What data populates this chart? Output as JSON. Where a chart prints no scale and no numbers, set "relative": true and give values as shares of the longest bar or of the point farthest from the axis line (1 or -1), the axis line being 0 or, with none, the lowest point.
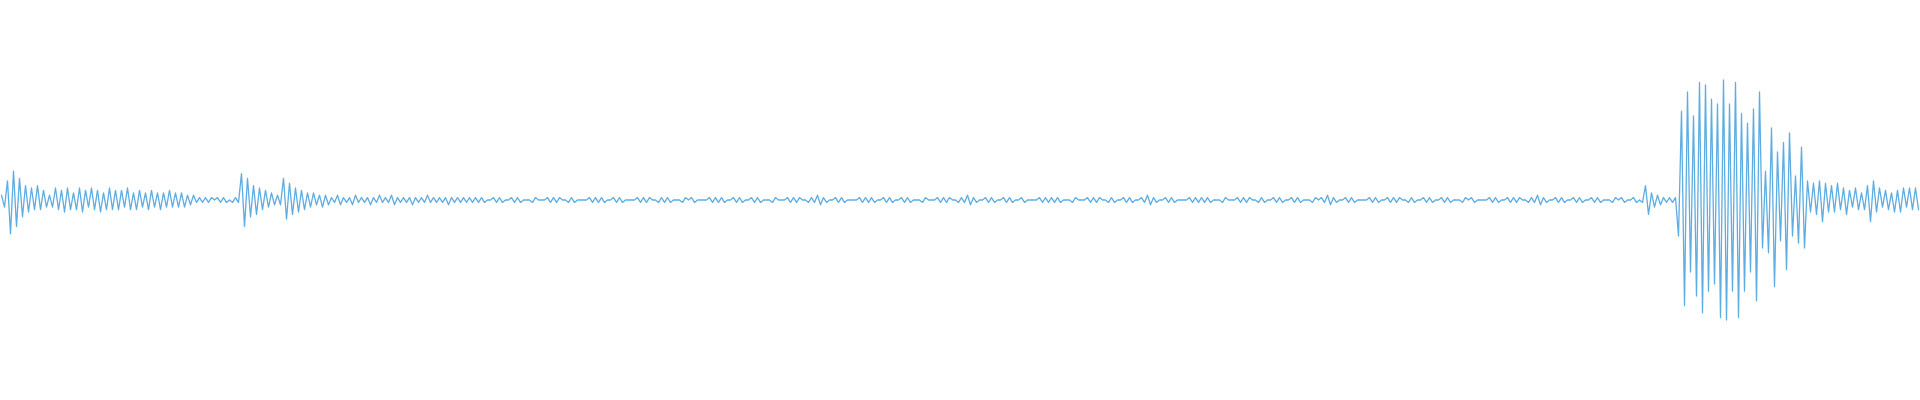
{
  "chart_data": {
    "type": "line",
    "relative": true,
    "color": "#5dade2",
    "categories": [
      null,
      null,
      null,
      null,
      null,
      null,
      null,
      null,
      null,
      null,
      null,
      null,
      null,
      null,
      null,
      null,
      null,
      null,
      null,
      null,
      null,
      null,
      null,
      null,
      null,
      null,
      null,
      null,
      null,
      null,
      null,
      null,
      null,
      null,
      null,
      null,
      null,
      null,
      null,
      null,
      null,
      null,
      null,
      null,
      null,
      null,
      null,
      null,
      null,
      null,
      null,
      null,
      null,
      null,
      null,
      null,
      null,
      null,
      null,
      null,
      null,
      null,
      null,
      null,
      null,
      null,
      null,
      null,
      null,
      null,
      null,
      null,
      null,
      null,
      null,
      null,
      null,
      null,
      null,
      null,
      null,
      null,
      null,
      null,
      null,
      null,
      null,
      null,
      null,
      null,
      null,
      null,
      null,
      null,
      null,
      null,
      null,
      null,
      null,
      null,
      null,
      null,
      null,
      null,
      null,
      null,
      null,
      null,
      null,
      null,
      null,
      null,
      null,
      null,
      null,
      null,
      null,
      null,
      null,
      null,
      null,
      null,
      null,
      null,
      null,
      null,
      null,
      null,
      null,
      null,
      null,
      null,
      null,
      null,
      null,
      null,
      null,
      null,
      null,
      null,
      null,
      null,
      null,
      null,
      null,
      null,
      null,
      null,
      null,
      null,
      null,
      null,
      null,
      null,
      null,
      null,
      null,
      null,
      null,
      null,
      null,
      null,
      null,
      null,
      null,
      null,
      null,
      null,
      null,
      null,
      null,
      null,
      null,
      null,
      null,
      null,
      null,
      null,
      null,
      null,
      null,
      null,
      null,
      null,
      null,
      null,
      null,
      null,
      null,
      null,
      null,
      null,
      null,
      null,
      null,
      null,
      null,
      null,
      null,
      null,
      null,
      null,
      null,
      null,
      null,
      null,
      null,
      null,
      null,
      null,
      null,
      null,
      null,
      null,
      null,
      null,
      null,
      null,
      null,
      null,
      null,
      null,
      null,
      null,
      null,
      null,
      null,
      null,
      null,
      null,
      null,
      null,
      null,
      null,
      null,
      null,
      null,
      null,
      null,
      null,
      null,
      null,
      null,
      null,
      null,
      null,
      null,
      null,
      null,
      null,
      null,
      null,
      null,
      null,
      null,
      null,
      null,
      null,
      null,
      null,
      null,
      null,
      null,
      null,
      null,
      null,
      null,
      null,
      null,
      null,
      null,
      null,
      null,
      null,
      null,
      null,
      null,
      null,
      null,
      null,
      null,
      null,
      null,
      null,
      null,
      null,
      null,
      null,
      null,
      null,
      null,
      null,
      null,
      null,
      null,
      null,
      null,
      null,
      null,
      null,
      null,
      null,
      null,
      null,
      null,
      null,
      null,
      null,
      null,
      null,
      null,
      null,
      null,
      null,
      null,
      null,
      null,
      null,
      null,
      null,
      null,
      null,
      null,
      null,
      null,
      null,
      null,
      null,
      null,
      null,
      null,
      null,
      null,
      null,
      null,
      null,
      null,
      null,
      null,
      null,
      null,
      null,
      null,
      null,
      null,
      null,
      null,
      null,
      null,
      null,
      null,
      null,
      null,
      null,
      null,
      null,
      null,
      null,
      null,
      null,
      null,
      null,
      null,
      null,
      null,
      null,
      null,
      null,
      null,
      null,
      null,
      null,
      null,
      null,
      null,
      null,
      null,
      null,
      null,
      null,
      null,
      null,
      null,
      null,
      null,
      null,
      null,
      null,
      null,
      null,
      null,
      null,
      null,
      null,
      null,
      null,
      null,
      null,
      null,
      null,
      null,
      null,
      null,
      null,
      null,
      null,
      null,
      null,
      null,
      null,
      null,
      null,
      null,
      null,
      null,
      null,
      null,
      null,
      null,
      null,
      null,
      null,
      null,
      null,
      null,
      null,
      null,
      null,
      null,
      null,
      null,
      null,
      null,
      null,
      null,
      null,
      null,
      null,
      null,
      null,
      null,
      null,
      null,
      null,
      null,
      null,
      null,
      null,
      null,
      null,
      null,
      null,
      null,
      null,
      null,
      null,
      null,
      null,
      null,
      null,
      null,
      null,
      null,
      null,
      null,
      null,
      null,
      null,
      null,
      null,
      null,
      null,
      null,
      null,
      null,
      null,
      null,
      null,
      null,
      null,
      null,
      null,
      null,
      null,
      null,
      null,
      null,
      null,
      null,
      null,
      null,
      null,
      null,
      null,
      null,
      null,
      null,
      null,
      null,
      null,
      null,
      null,
      null,
      null,
      null,
      null,
      null,
      null,
      null,
      null,
      null,
      null,
      null,
      null,
      null,
      null,
      null,
      null,
      null,
      null,
      null,
      null,
      null,
      null,
      null,
      null,
      null,
      null,
      null,
      null,
      null,
      null,
      null,
      null,
      null,
      null,
      null,
      null,
      null,
      null,
      null,
      null,
      null,
      null,
      null,
      null,
      null,
      null,
      null,
      null,
      null,
      null,
      null,
      null,
      null,
      null,
      null,
      null,
      null,
      null,
      null,
      null,
      null,
      null,
      null,
      null,
      null,
      null,
      null,
      null,
      null,
      null,
      null,
      null,
      null,
      null,
      null,
      null,
      null,
      null,
      null,
      null,
      null,
      null,
      null,
      null,
      null,
      null,
      null,
      null,
      null,
      null,
      null,
      null,
      null,
      null,
      null,
      null,
      null,
      null,
      null,
      null,
      null,
      null,
      null,
      null,
      null,
      null,
      null,
      null,
      null,
      null,
      null,
      null,
      null,
      null,
      null,
      null,
      null,
      null,
      null,
      null,
      null,
      null,
      null,
      null,
      null,
      null,
      null,
      null,
      null,
      null,
      null,
      null,
      null,
      null,
      null,
      null,
      null,
      null
    ],
    "values": [
      0.52,
      0.47,
      0.58,
      0.36,
      0.62,
      0.39,
      0.59,
      0.43,
      0.56,
      0.45,
      0.55,
      0.46,
      0.56,
      0.46,
      0.54,
      0.47,
      0.52,
      0.47,
      0.55,
      0.46,
      0.54,
      0.45,
      0.55,
      0.46,
      0.53,
      0.46,
      0.55,
      0.45,
      0.54,
      0.47,
      0.55,
      0.46,
      0.54,
      0.45,
      0.53,
      0.46,
      0.55,
      0.46,
      0.54,
      0.46,
      0.54,
      0.47,
      0.55,
      0.46,
      0.53,
      0.46,
      0.54,
      0.47,
      0.53,
      0.46,
      0.54,
      0.47,
      0.53,
      0.46,
      0.53,
      0.47,
      0.54,
      0.47,
      0.53,
      0.47,
      0.53,
      0.47,
      0.52,
      0.48,
      0.52,
      0.49,
      0.51,
      0.49,
      0.51,
      0.49,
      0.51,
      0.5,
      0.51,
      0.49,
      0.51,
      0.49,
      0.5,
      0.49,
      0.51,
      0.49,
      0.61,
      0.39,
      0.59,
      0.43,
      0.56,
      0.44,
      0.55,
      0.46,
      0.54,
      0.47,
      0.53,
      0.48,
      0.52,
      0.48,
      0.59,
      0.42,
      0.57,
      0.44,
      0.55,
      0.45,
      0.54,
      0.46,
      0.53,
      0.47,
      0.53,
      0.48,
      0.52,
      0.47,
      0.52,
      0.48,
      0.51,
      0.49,
      0.52,
      0.48,
      0.51,
      0.49,
      0.51,
      0.48,
      0.52,
      0.49,
      0.51,
      0.49,
      0.51,
      0.48,
      0.51,
      0.49,
      0.52,
      0.49,
      0.51,
      0.49,
      0.52,
      0.48,
      0.51,
      0.49,
      0.51,
      0.49,
      0.51,
      0.48,
      0.51,
      0.49,
      0.51,
      0.49,
      0.52,
      0.49,
      0.51,
      0.49,
      0.51,
      0.49,
      0.51,
      0.48,
      0.51,
      0.49,
      0.51,
      0.49,
      0.51,
      0.49,
      0.51,
      0.49,
      0.51,
      0.49,
      0.51,
      0.49,
      0.5,
      0.5,
      0.51,
      0.49,
      0.51,
      0.49,
      0.5,
      0.5,
      0.51,
      0.49,
      0.51,
      0.49,
      0.5,
      0.5,
      0.5,
      0.49,
      0.51,
      0.5,
      0.5,
      0.5,
      0.51,
      0.49,
      0.51,
      0.49,
      0.51,
      0.5,
      0.5,
      0.49,
      0.51,
      0.49,
      0.5,
      0.5,
      0.5,
      0.5,
      0.51,
      0.49,
      0.51,
      0.49,
      0.51,
      0.49,
      0.5,
      0.5,
      0.51,
      0.49,
      0.51,
      0.49,
      0.5,
      0.5,
      0.5,
      0.5,
      0.51,
      0.49,
      0.51,
      0.49,
      0.51,
      0.5,
      0.5,
      0.49,
      0.51,
      0.49,
      0.51,
      0.49,
      0.5,
      0.5,
      0.5,
      0.49,
      0.51,
      0.5,
      0.51,
      0.49,
      0.5,
      0.5,
      0.5,
      0.5,
      0.51,
      0.49,
      0.51,
      0.49,
      0.51,
      0.49,
      0.5,
      0.5,
      0.51,
      0.49,
      0.51,
      0.49,
      0.5,
      0.5,
      0.51,
      0.49,
      0.51,
      0.49,
      0.5,
      0.5,
      0.5,
      0.49,
      0.51,
      0.5,
      0.5,
      0.5,
      0.51,
      0.49,
      0.51,
      0.49,
      0.51,
      0.5,
      0.5,
      0.49,
      0.51,
      0.49,
      0.52,
      0.48,
      0.51,
      0.49,
      0.5,
      0.5,
      0.51,
      0.49,
      0.51,
      0.49,
      0.5,
      0.5,
      0.5,
      0.5,
      0.51,
      0.49,
      0.51,
      0.49,
      0.51,
      0.49,
      0.5,
      0.5,
      0.51,
      0.49,
      0.51,
      0.49,
      0.5,
      0.5,
      0.51,
      0.49,
      0.51,
      0.49,
      0.5,
      0.5,
      0.5,
      0.49,
      0.51,
      0.5,
      0.5,
      0.5,
      0.51,
      0.49,
      0.51,
      0.49,
      0.51,
      0.5,
      0.5,
      0.49,
      0.51,
      0.49,
      0.52,
      0.48,
      0.51,
      0.49,
      0.5,
      0.5,
      0.51,
      0.49,
      0.51,
      0.49,
      0.5,
      0.5,
      0.51,
      0.49,
      0.51,
      0.49,
      0.5,
      0.5,
      0.51,
      0.49,
      0.5,
      0.5,
      0.5,
      0.5,
      0.51,
      0.49,
      0.51,
      0.49,
      0.51,
      0.49,
      0.51,
      0.49,
      0.5,
      0.5,
      0.5,
      0.49,
      0.51,
      0.5,
      0.5,
      0.5,
      0.51,
      0.49,
      0.51,
      0.49,
      0.51,
      0.5,
      0.5,
      0.49,
      0.51,
      0.49,
      0.5,
      0.5,
      0.51,
      0.49,
      0.51,
      0.49,
      0.5,
      0.5,
      0.51,
      0.49,
      0.52,
      0.48,
      0.51,
      0.49,
      0.5,
      0.5,
      0.51,
      0.49,
      0.51,
      0.49,
      0.5,
      0.5,
      0.5,
      0.5,
      0.51,
      0.49,
      0.51,
      0.49,
      0.51,
      0.49,
      0.51,
      0.49,
      0.5,
      0.5,
      0.5,
      0.49,
      0.51,
      0.5,
      0.5,
      0.5,
      0.51,
      0.49,
      0.51,
      0.49,
      0.51,
      0.5,
      0.5,
      0.49,
      0.51,
      0.49,
      0.5,
      0.5,
      0.51,
      0.49,
      0.51,
      0.49,
      0.5,
      0.5,
      0.51,
      0.49,
      0.51,
      0.49,
      0.5,
      0.5,
      0.5,
      0.49,
      0.51,
      0.5,
      0.51,
      0.49,
      0.52,
      0.48,
      0.51,
      0.49,
      0.5,
      0.5,
      0.51,
      0.49,
      0.51,
      0.49,
      0.5,
      0.5,
      0.5,
      0.5,
      0.51,
      0.49,
      0.51,
      0.49,
      0.5,
      0.5,
      0.51,
      0.49,
      0.51,
      0.49,
      0.51,
      0.5,
      0.5,
      0.49,
      0.51,
      0.49,
      0.5,
      0.5,
      0.51,
      0.49,
      0.51,
      0.49,
      0.5,
      0.5,
      0.51,
      0.49,
      0.51,
      0.49,
      0.5,
      0.5,
      0.5,
      0.49,
      0.51,
      0.5,
      0.51,
      0.49,
      0.5,
      0.5,
      0.5,
      0.5,
      0.51,
      0.49,
      0.51,
      0.49,
      0.5,
      0.5,
      0.51,
      0.49,
      0.51,
      0.49,
      0.51,
      0.5,
      0.5,
      0.49,
      0.51,
      0.49,
      0.52,
      0.48,
      0.51,
      0.49,
      0.5,
      0.5,
      0.51,
      0.49,
      0.51,
      0.49,
      0.5,
      0.5,
      0.51,
      0.49,
      0.51,
      0.49,
      0.5,
      0.5,
      0.51,
      0.49,
      0.51,
      0.49,
      0.5,
      0.5,
      0.5,
      0.49,
      0.51,
      0.5,
      0.51,
      0.49,
      0.5,
      0.5,
      0.51,
      0.49,
      0.5,
      0.49,
      0.56,
      0.44,
      0.53,
      0.47,
      0.52,
      0.48,
      0.51,
      0.49,
      0.51,
      0.49,
      0.51,
      0.35,
      0.87,
      0.06,
      0.95,
      0.2,
      0.85,
      0.1,
      0.99,
      0.03,
      0.98,
      0.12,
      0.92,
      0.15,
      0.9,
      0.01,
      1.0,
      0.0,
      0.9,
      0.12,
      0.99,
      0.01,
      0.86,
      0.12,
      0.82,
      0.2,
      0.88,
      0.08,
      0.95,
      0.3,
      0.62,
      0.28,
      0.8,
      0.14,
      0.7,
      0.33,
      0.74,
      0.21,
      0.78,
      0.35,
      0.6,
      0.32,
      0.72,
      0.3,
      0.58,
      0.45,
      0.57,
      0.44,
      0.58,
      0.41,
      0.57,
      0.45,
      0.56,
      0.45,
      0.57,
      0.46,
      0.55,
      0.44,
      0.54,
      0.47,
      0.55,
      0.46,
      0.53,
      0.46,
      0.56,
      0.41,
      0.58,
      0.45,
      0.55,
      0.47,
      0.54,
      0.46,
      0.53,
      0.45,
      0.54,
      0.45,
      0.55,
      0.47,
      0.55,
      0.46,
      0.55,
      0.46
    ]
  }
}
